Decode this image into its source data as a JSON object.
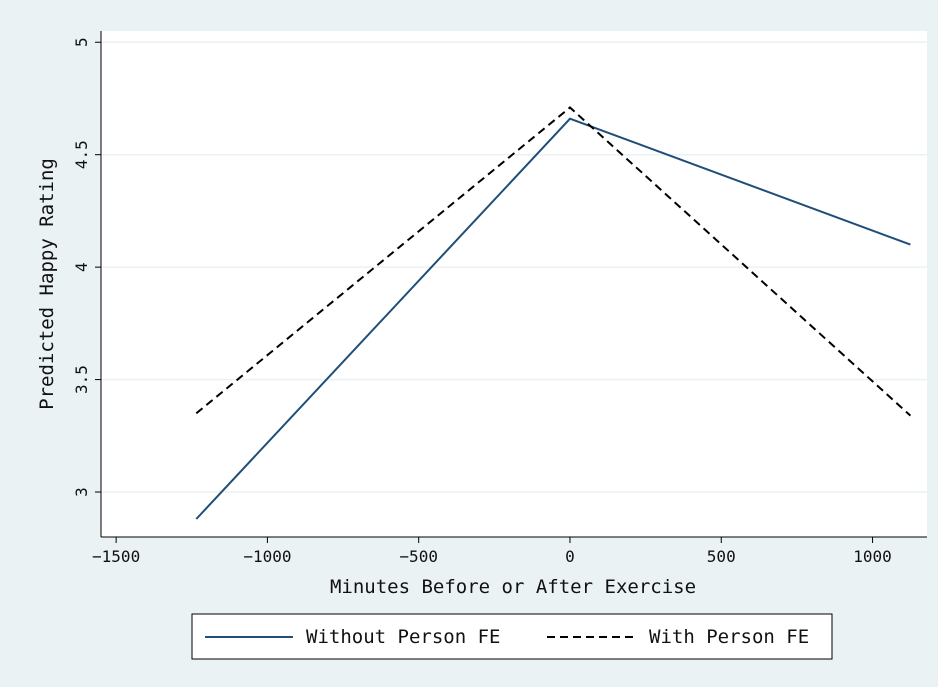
{
  "chart_data": {
    "type": "line",
    "xlabel": "Minutes Before or After Exercise",
    "ylabel": "Predicted Happy Rating",
    "xlim": [
      -1550,
      1180
    ],
    "ylim": [
      2.8,
      5.05
    ],
    "xticks": [
      -1500,
      -1000,
      -500,
      0,
      500,
      1000
    ],
    "xtick_labels": [
      "−1500",
      "−1000",
      "−500",
      "0",
      "500",
      "1000"
    ],
    "yticks": [
      3,
      3.5,
      4,
      4.5,
      5
    ],
    "ytick_labels": [
      "3",
      "3.5",
      "4",
      "4.5",
      "5"
    ],
    "grid": true,
    "legend_position": "bottom",
    "series": [
      {
        "name": "Without Person FE",
        "x": [
          -1235,
          0,
          1125
        ],
        "y": [
          2.88,
          4.66,
          4.1
        ],
        "color": "#1f4e79",
        "style": "solid"
      },
      {
        "name": "With Person FE",
        "x": [
          -1235,
          0,
          1125
        ],
        "y": [
          3.35,
          4.71,
          3.34
        ],
        "color": "#000000",
        "style": "dashed"
      }
    ],
    "colors": {
      "outer_background": "#eaf2f3",
      "plot_background": "#ffffff",
      "grid": "#eaf2f3"
    }
  }
}
